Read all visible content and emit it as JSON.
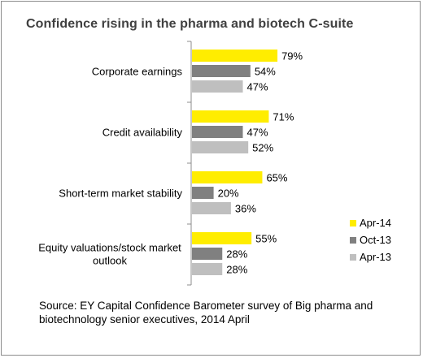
{
  "title": "Confidence rising in the pharma and biotech C-suite",
  "source": "Source: EY Capital Confidence Barometer survey of Big pharma and biotechnology senior executives, 2014 April",
  "chart_data": {
    "type": "bar",
    "orientation": "horizontal",
    "title": "Confidence rising in the pharma and biotech C-suite",
    "categories": [
      "Corporate earnings",
      "Credit availability",
      "Short-term market stability",
      "Equity valuations/stock market outlook"
    ],
    "category_lines": [
      [
        "Corporate earnings"
      ],
      [
        "Credit availability"
      ],
      [
        "Short-term market stability"
      ],
      [
        "Equity valuations/stock market",
        "outlook"
      ]
    ],
    "series": [
      {
        "name": "Apr-14",
        "values": [
          79,
          71,
          65,
          55
        ],
        "color": "#ffed00"
      },
      {
        "name": "Oct-13",
        "values": [
          54,
          47,
          20,
          28
        ],
        "color": "#808080"
      },
      {
        "name": "Apr-13",
        "values": [
          47,
          52,
          36,
          28
        ],
        "color": "#bfbfbf"
      }
    ],
    "value_format": "percent",
    "xlim": [
      0,
      100
    ],
    "grid": false,
    "legend_position": "right"
  }
}
